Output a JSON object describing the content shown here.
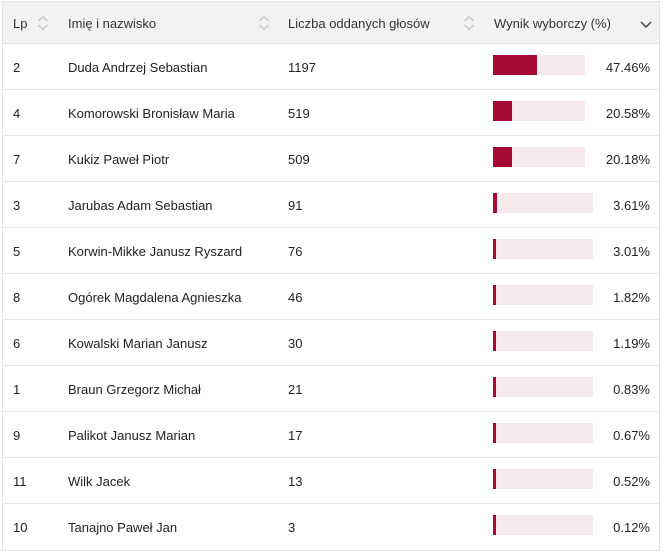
{
  "table": {
    "columns": {
      "lp": "Lp",
      "name": "Imię i nazwisko",
      "votes": "Liczba oddanych głosów",
      "result": "Wynik wyborczy (%)"
    },
    "rows": [
      {
        "lp": "2",
        "name": "Duda Andrzej Sebastian",
        "votes": "1197",
        "result": "47.46%",
        "share": 47.46
      },
      {
        "lp": "4",
        "name": "Komorowski Bronisław Maria",
        "votes": "519",
        "result": "20.58%",
        "share": 20.58
      },
      {
        "lp": "7",
        "name": "Kukiz Paweł Piotr",
        "votes": "509",
        "result": "20.18%",
        "share": 20.18
      },
      {
        "lp": "3",
        "name": "Jarubas Adam Sebastian",
        "votes": "91",
        "result": "3.61%",
        "share": 3.61
      },
      {
        "lp": "5",
        "name": "Korwin-Mikke Janusz Ryszard",
        "votes": "76",
        "result": "3.01%",
        "share": 3.01
      },
      {
        "lp": "8",
        "name": "Ogórek Magdalena Agnieszka",
        "votes": "46",
        "result": "1.82%",
        "share": 1.82
      },
      {
        "lp": "6",
        "name": "Kowalski Marian Janusz",
        "votes": "30",
        "result": "1.19%",
        "share": 1.19
      },
      {
        "lp": "1",
        "name": "Braun Grzegorz Michał",
        "votes": "21",
        "result": "0.83%",
        "share": 0.83
      },
      {
        "lp": "9",
        "name": "Palikot Janusz Marian",
        "votes": "17",
        "result": "0.67%",
        "share": 0.67
      },
      {
        "lp": "11",
        "name": "Wilk Jacek",
        "votes": "13",
        "result": "0.52%",
        "share": 0.52
      },
      {
        "lp": "10",
        "name": "Tanajno Paweł Jan",
        "votes": "3",
        "result": "0.12%",
        "share": 0.12
      }
    ]
  },
  "icons": {
    "sort": "sort-arrows-icon",
    "dropdown": "chevron-down-icon"
  },
  "colors": {
    "bar_fill": "#a50a30",
    "bar_track": "#f7e8ec",
    "header_bg": "#f2f2f2"
  }
}
